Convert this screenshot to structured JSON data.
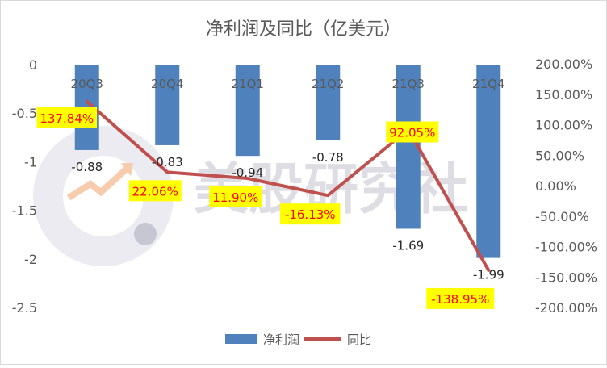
{
  "chart_data": {
    "type": "bar",
    "title": "净利润及同比（亿美元）",
    "categories": [
      "20Q3",
      "20Q4",
      "21Q1",
      "21Q2",
      "21Q3",
      "21Q4"
    ],
    "series": [
      {
        "name": "净利润",
        "type": "bar",
        "axis": "left",
        "color": "#4f81bd",
        "values": [
          -0.88,
          -0.83,
          -0.94,
          -0.78,
          -1.69,
          -1.99
        ],
        "labels": [
          "-0.88",
          "-0.83",
          "-0.94",
          "-0.78",
          "-1.69",
          "-1.99"
        ]
      },
      {
        "name": "同比",
        "type": "line",
        "axis": "right",
        "color": "#c0504d",
        "values": [
          137.84,
          22.06,
          11.9,
          -16.13,
          92.05,
          -138.95
        ],
        "labels": [
          "137.84%",
          "22.06%",
          "11.90%",
          "-16.13%",
          "92.05%",
          "-138.95%"
        ]
      }
    ],
    "y_left": {
      "range": [
        -2.5,
        0
      ],
      "ticks": [
        "0",
        "-0.5",
        "-1",
        "-1.5",
        "-2",
        "-2.5"
      ]
    },
    "y_right": {
      "range": [
        -200,
        200
      ],
      "ticks": [
        "200.00%",
        "150.00%",
        "100.00%",
        "50.00%",
        "0.00%",
        "-50.00%",
        "-100.00%",
        "-150.00%",
        "-200.00%"
      ]
    },
    "grid": false,
    "legend": "bottom",
    "data_label_highlight": "#ffff00",
    "line_label_color": "#ff0000"
  },
  "watermark": {
    "text": "美股研究社"
  }
}
